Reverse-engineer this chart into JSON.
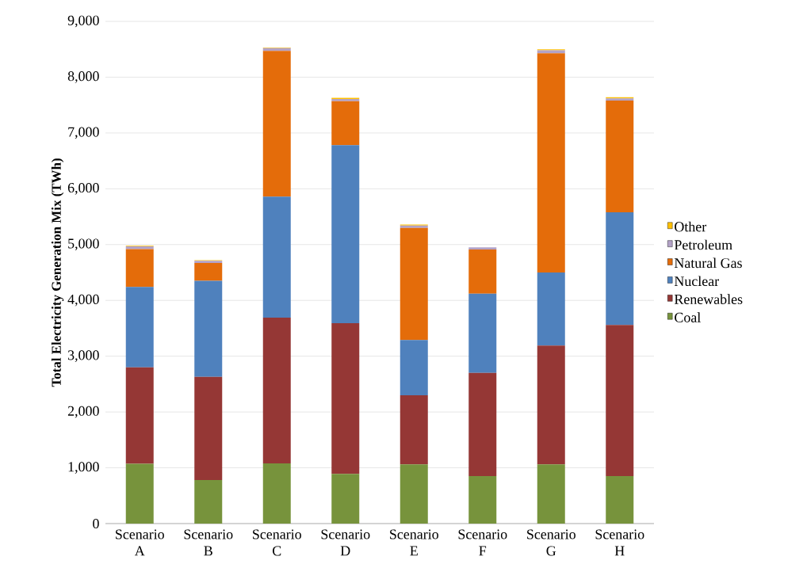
{
  "chart_data": {
    "type": "bar",
    "stacked": true,
    "ylabel": "Total Electricity Generation Mix (TWh)",
    "categories": [
      "Scenario A",
      "Scenario B",
      "Scenario C",
      "Scenario D",
      "Scenario E",
      "Scenario F",
      "Scenario G",
      "Scenario H"
    ],
    "series": [
      {
        "name": "Coal",
        "color": "#77933c",
        "values": [
          1070,
          780,
          1080,
          890,
          1060,
          850,
          1060,
          850
        ]
      },
      {
        "name": "Renewables",
        "color": "#953735",
        "values": [
          1730,
          1850,
          2610,
          2700,
          1240,
          1850,
          2130,
          2710
        ]
      },
      {
        "name": "Nuclear",
        "color": "#4f81bd",
        "values": [
          1440,
          1720,
          2170,
          3190,
          990,
          1420,
          1310,
          2020
        ]
      },
      {
        "name": "Natural Gas",
        "color": "#e46c0a",
        "values": [
          680,
          320,
          2610,
          790,
          2010,
          790,
          3930,
          2000
        ]
      },
      {
        "name": "Petroleum",
        "color": "#b3a2c7",
        "values": [
          50,
          40,
          50,
          40,
          40,
          40,
          50,
          40
        ]
      },
      {
        "name": "Other",
        "color": "#ffc000",
        "values": [
          10,
          10,
          10,
          20,
          20,
          null,
          20,
          20
        ]
      }
    ],
    "ylim": [
      0,
      9000
    ],
    "yticks": [
      {
        "value": 0,
        "label": "0"
      },
      {
        "value": 1000,
        "label": "1,000"
      },
      {
        "value": 2000,
        "label": "2,000"
      },
      {
        "value": 3000,
        "label": "3,000"
      },
      {
        "value": 4000,
        "label": "4,000"
      },
      {
        "value": 5000,
        "label": "5,000"
      },
      {
        "value": 6000,
        "label": "6,000"
      },
      {
        "value": 7000,
        "label": "7,000"
      },
      {
        "value": 8000,
        "label": "8,000"
      },
      {
        "value": 9000,
        "label": "9,000"
      }
    ],
    "grid": "y",
    "legend": "right"
  }
}
